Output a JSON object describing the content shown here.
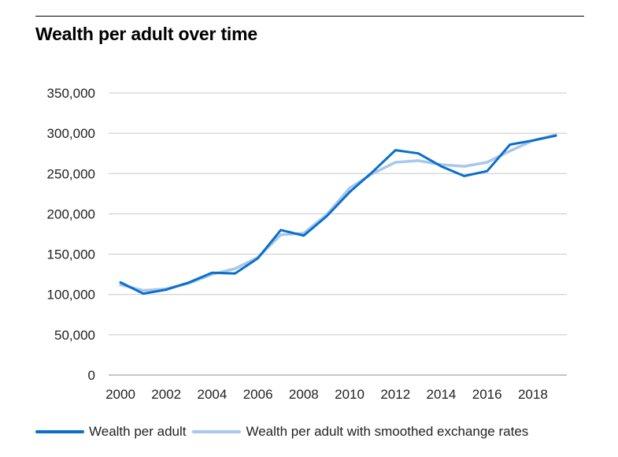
{
  "title": "Wealth per adult over time",
  "chart_data": {
    "type": "line",
    "title": "Wealth per adult over time",
    "xlabel": "",
    "ylabel": "",
    "xlim": [
      2000,
      2019
    ],
    "ylim": [
      0,
      350000
    ],
    "y_ticks": [
      0,
      50000,
      100000,
      150000,
      200000,
      250000,
      300000,
      350000
    ],
    "y_tick_labels": [
      "0",
      "50,000",
      "100,000",
      "150,000",
      "200,000",
      "250,000",
      "300,000",
      "350,000"
    ],
    "x_tick_labels": [
      "2000",
      "2002",
      "2004",
      "2006",
      "2008",
      "2010",
      "2012",
      "2014",
      "2016",
      "2018"
    ],
    "x_tick_values": [
      2000,
      2002,
      2004,
      2006,
      2008,
      2010,
      2012,
      2014,
      2016,
      2018
    ],
    "grid": "horizontal",
    "legend_position": "bottom",
    "x": [
      2000,
      2001,
      2002,
      2003,
      2004,
      2005,
      2006,
      2007,
      2008,
      2009,
      2010,
      2011,
      2012,
      2013,
      2014,
      2015,
      2016,
      2017,
      2018,
      2019
    ],
    "series": [
      {
        "name": "Wealth per adult",
        "color": "#0a6fc9",
        "values": [
          115000,
          101000,
          106000,
          115000,
          127000,
          126000,
          145000,
          180000,
          173000,
          197000,
          227000,
          252000,
          279000,
          275000,
          259000,
          247000,
          253000,
          286000,
          291000,
          297000
        ]
      },
      {
        "name": "Wealth per adult with smoothed exchange rates",
        "color": "#a9c7ec",
        "values": [
          112000,
          105000,
          107000,
          114000,
          125000,
          132000,
          146000,
          174000,
          176000,
          199000,
          232000,
          250000,
          264000,
          266000,
          261000,
          259000,
          264000,
          278000,
          291000,
          298000
        ]
      }
    ]
  }
}
